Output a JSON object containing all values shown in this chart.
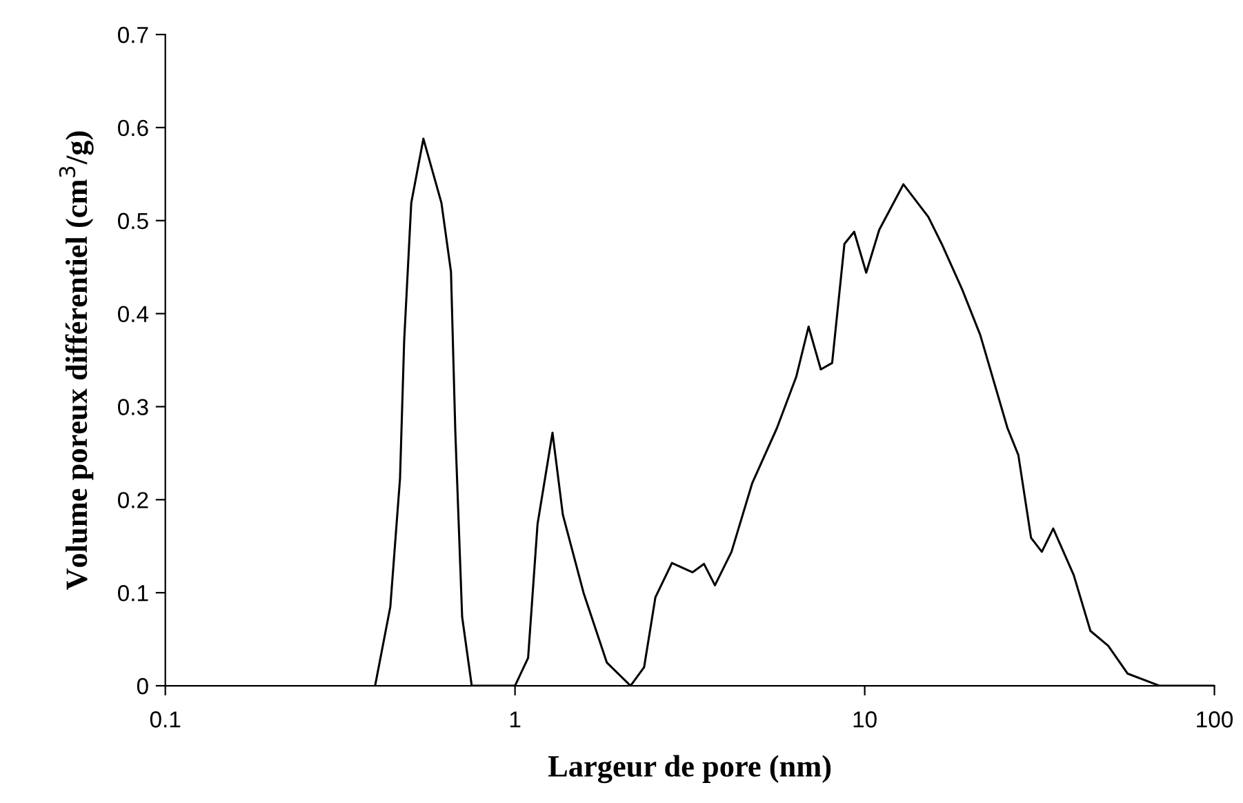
{
  "chart_data": {
    "type": "line",
    "xlabel": "Largeur de pore (nm)",
    "ylabel": "Volume poreux différentiel (cm$^{3}$/g)",
    "log": "x",
    "grid": false,
    "marker": "none",
    "line_style": "solid",
    "xlim": [
      0.1,
      100
    ],
    "xticks": [
      0.1,
      1,
      10,
      100
    ],
    "ylim": [
      0,
      0.7
    ],
    "yticks": [
      {
        "value": 0,
        "label": "0"
      },
      0.1,
      0.2,
      0.3,
      0.4,
      0.5,
      0.6,
      0.7
    ],
    "series": [
      {
        "color": "#000000",
        "x": [
          0.398,
          0.44,
          0.469,
          0.482,
          0.505,
          0.547,
          0.616,
          0.656,
          0.675,
          0.706,
          0.752,
          1.0,
          1.09,
          1.16,
          1.28,
          1.37,
          1.57,
          1.83,
          2.14,
          2.34,
          2.52,
          2.81,
          3.22,
          3.47,
          3.73,
          4.16,
          4.77,
          5.61,
          6.37,
          6.91,
          7.49,
          8.07,
          8.75,
          9.33,
          10.1,
          11.0,
          12.9,
          15.2,
          16.6,
          19.0,
          21.4,
          25.6,
          27.5,
          29.9,
          32.1,
          34.6,
          39.6,
          44.2,
          49.7,
          56.5,
          69.7,
          100
        ],
        "values": [
          0,
          0.085,
          0.223,
          0.371,
          0.519,
          0.588,
          0.519,
          0.445,
          0.273,
          0.074,
          0,
          0,
          0.03,
          0.174,
          0.272,
          0.184,
          0.1,
          0.025,
          0,
          0.02,
          0.095,
          0.132,
          0.122,
          0.131,
          0.108,
          0.144,
          0.218,
          0.277,
          0.332,
          0.386,
          0.34,
          0.347,
          0.475,
          0.488,
          0.444,
          0.49,
          0.539,
          0.504,
          0.475,
          0.426,
          0.377,
          0.277,
          0.248,
          0.159,
          0.144,
          0.169,
          0.119,
          0.059,
          0.043,
          0.013,
          0,
          0
        ]
      }
    ]
  }
}
